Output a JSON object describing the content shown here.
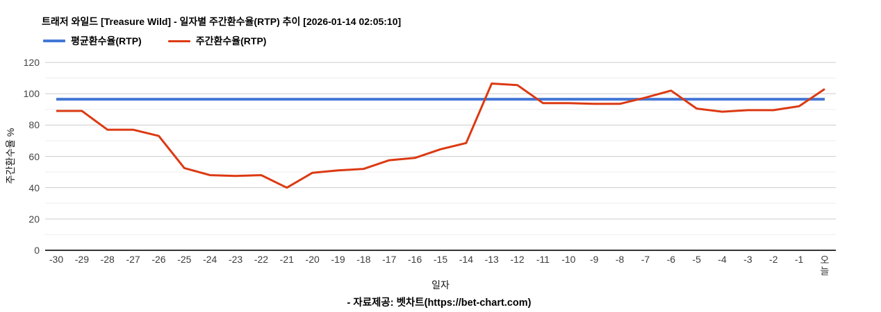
{
  "header": {
    "title": "트래저 와일드 [Treasure Wild] - 일자별 주간환수율(RTP) 추이 [2026-01-14 02:05:10]"
  },
  "legend": {
    "items": [
      {
        "label": "평균환수율(RTP)",
        "color": "#4377d6"
      },
      {
        "label": "주간환수율(RTP)",
        "color": "#dc3912"
      }
    ]
  },
  "chart_data": {
    "type": "line",
    "title": "트래저 와일드 [Treasure Wild] - 일자별 주간환수율(RTP) 추이 [2026-01-14 02:05:10]",
    "xlabel": "일자",
    "ylabel": "주간환수율 %",
    "ylim": [
      0,
      120
    ],
    "yticks": [
      0,
      20,
      40,
      60,
      80,
      100,
      120
    ],
    "minor_grid_step": 10,
    "grid": "horizontal",
    "legend_position": "top-left",
    "categories": [
      "-30",
      "-29",
      "-28",
      "-27",
      "-26",
      "-25",
      "-24",
      "-23",
      "-22",
      "-21",
      "-20",
      "-19",
      "-18",
      "-17",
      "-16",
      "-15",
      "-14",
      "-13",
      "-12",
      "-11",
      "-10",
      "-9",
      "-8",
      "-7",
      "-6",
      "-5",
      "-4",
      "-3",
      "-2",
      "-1",
      "오늘"
    ],
    "series": [
      {
        "name": "평균환수율(RTP)",
        "kind": "constant",
        "value": 96.5,
        "color": "#4377d6",
        "stroke_width": 4
      },
      {
        "name": "주간환수율(RTP)",
        "kind": "data",
        "values": [
          89,
          89,
          77,
          77,
          73,
          52.5,
          48,
          47.5,
          48,
          40,
          49.5,
          51,
          52,
          57.5,
          59,
          64.5,
          68.5,
          106.5,
          105.5,
          94,
          94,
          93.5,
          93.5,
          97.5,
          102,
          90.5,
          88.5,
          89.5,
          89.5,
          92,
          103
        ],
        "color": "#dc3912",
        "stroke_width": 3
      }
    ]
  },
  "colors": {
    "axis_line": "#333333",
    "major_grid": "#cccccc",
    "minor_grid": "#ededed"
  },
  "footer": {
    "source_text": "- 자료제공: 벳차트(https://bet-chart.com)"
  }
}
